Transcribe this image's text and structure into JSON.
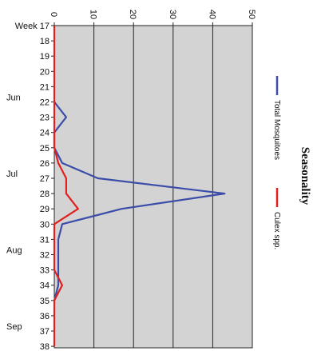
{
  "chart_data": {
    "type": "line",
    "orientation": "rotated-90-clockwise",
    "title": "Seasonality",
    "value_axis": {
      "range": [
        0,
        50
      ],
      "ticks": [
        0,
        10,
        20,
        30,
        40,
        50
      ]
    },
    "week_axis": {
      "prefix_label": "Week 17",
      "weeks": [
        17,
        18,
        19,
        20,
        21,
        22,
        23,
        24,
        25,
        26,
        27,
        28,
        29,
        30,
        31,
        32,
        33,
        34,
        35,
        36,
        37,
        38
      ],
      "month_labels": [
        {
          "label": "Jun",
          "week": 22
        },
        {
          "label": "Jul",
          "week": 27
        },
        {
          "label": "Aug",
          "week": 32
        },
        {
          "label": "Sep",
          "week": 37
        }
      ]
    },
    "grid": true,
    "legend_position": "right",
    "series": [
      {
        "name": "Total Mosquitoes",
        "color": "#3b4da8",
        "points": [
          {
            "week": 22,
            "value": 0
          },
          {
            "week": 23,
            "value": 3
          },
          {
            "week": 24,
            "value": 0
          },
          {
            "week": 25,
            "value": 0
          },
          {
            "week": 26,
            "value": 2
          },
          {
            "week": 27,
            "value": 11
          },
          {
            "week": 28,
            "value": 43
          },
          {
            "week": 29,
            "value": 17
          },
          {
            "week": 30,
            "value": 2
          },
          {
            "week": 31,
            "value": 1
          },
          {
            "week": 32,
            "value": 1
          },
          {
            "week": 33,
            "value": 1
          },
          {
            "week": 34,
            "value": 1
          },
          {
            "week": 35,
            "value": 0
          }
        ]
      },
      {
        "name": "Culex spp.",
        "color": "#e02020",
        "points": [
          {
            "week": 17,
            "value": 0
          },
          {
            "week": 18,
            "value": 0
          },
          {
            "week": 19,
            "value": 0
          },
          {
            "week": 20,
            "value": 0
          },
          {
            "week": 21,
            "value": 0
          },
          {
            "week": 22,
            "value": 0
          },
          {
            "week": 23,
            "value": 0
          },
          {
            "week": 24,
            "value": 0
          },
          {
            "week": 25,
            "value": 0
          },
          {
            "week": 26,
            "value": 1
          },
          {
            "week": 27,
            "value": 3
          },
          {
            "week": 28,
            "value": 3
          },
          {
            "week": 29,
            "value": 6
          },
          {
            "week": 30,
            "value": 0
          },
          {
            "week": 31,
            "value": 0
          },
          {
            "week": 32,
            "value": 0
          },
          {
            "week": 33,
            "value": 0
          },
          {
            "week": 34,
            "value": 2
          },
          {
            "week": 35,
            "value": 0
          },
          {
            "week": 36,
            "value": 0
          },
          {
            "week": 37,
            "value": 0
          },
          {
            "week": 38,
            "value": 0
          }
        ]
      }
    ]
  }
}
